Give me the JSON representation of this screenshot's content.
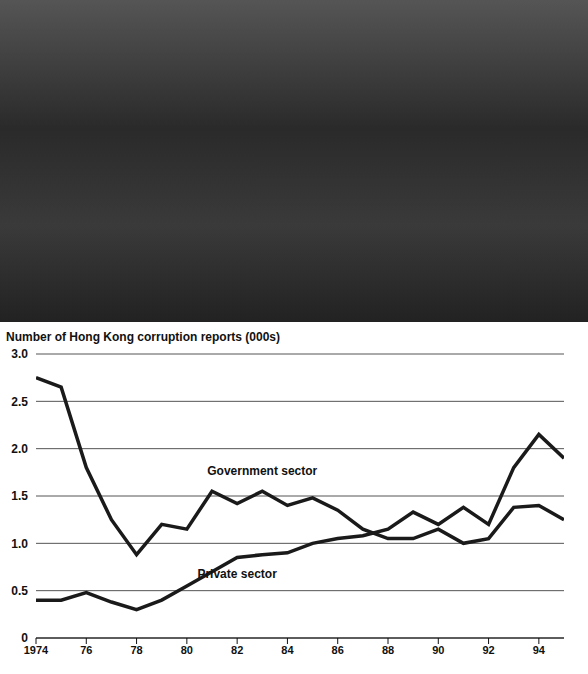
{
  "chart_data": {
    "type": "line",
    "title": "Number of Hong Kong corruption reports (000s)",
    "x": [
      1974,
      1975,
      1976,
      1977,
      1978,
      1979,
      1980,
      1981,
      1982,
      1983,
      1984,
      1985,
      1986,
      1987,
      1988,
      1989,
      1990,
      1991,
      1992,
      1993,
      1994,
      1995
    ],
    "series": [
      {
        "name": "Government sector",
        "color": "#1a1a1a",
        "values": [
          2.75,
          2.65,
          1.8,
          1.25,
          0.88,
          1.2,
          1.15,
          1.55,
          1.42,
          1.55,
          1.4,
          1.48,
          1.35,
          1.15,
          1.05,
          1.05,
          1.15,
          1.0,
          1.05,
          1.38,
          1.4,
          1.25
        ]
      },
      {
        "name": "Private sector",
        "color": "#1a1a1a",
        "values": [
          0.4,
          0.4,
          0.48,
          0.38,
          0.3,
          0.4,
          0.55,
          0.7,
          0.85,
          0.88,
          0.9,
          1.0,
          1.05,
          1.08,
          1.15,
          1.33,
          1.2,
          1.38,
          1.2,
          1.8,
          2.15,
          1.9
        ]
      }
    ],
    "xlim": [
      1974,
      1995
    ],
    "xticks": [
      1974,
      {
        "value": 1976,
        "label": "76"
      },
      {
        "value": 1978,
        "label": "78"
      },
      {
        "value": 1980,
        "label": "80"
      },
      {
        "value": 1982,
        "label": "82"
      },
      {
        "value": 1984,
        "label": "84"
      },
      {
        "value": 1986,
        "label": "86"
      },
      {
        "value": 1988,
        "label": "88"
      },
      {
        "value": 1990,
        "label": "90"
      },
      {
        "value": 1992,
        "label": "92"
      },
      {
        "value": 1994,
        "label": "94"
      }
    ],
    "ylim": [
      0,
      3
    ],
    "yticks": [
      0,
      0.5,
      {
        "value": 1,
        "label": "1.0"
      },
      1.5,
      {
        "value": 2,
        "label": "2.0"
      },
      2.5,
      {
        "value": 3,
        "label": "3.0"
      }
    ],
    "grid": true
  }
}
